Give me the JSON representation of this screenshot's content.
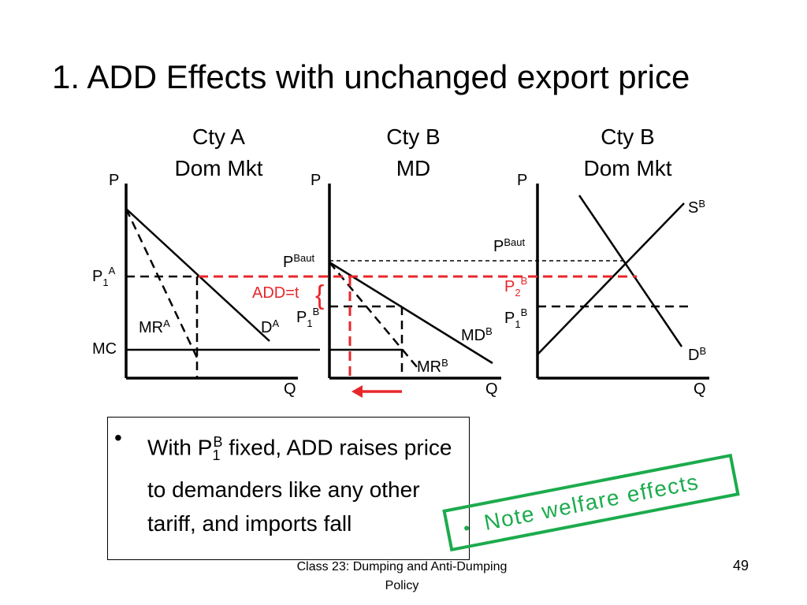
{
  "slide": {
    "title": "1.  ADD Effects with unchanged export price",
    "footer": "Class 23:  Dumping and Anti-Dumping Policy",
    "page_number": "49"
  },
  "panels": [
    {
      "title_line1": "Cty A",
      "title_line2": "Dom Mkt"
    },
    {
      "title_line1": "Cty B",
      "title_line2": "MD"
    },
    {
      "title_line1": "Cty B",
      "title_line2": "Dom Mkt"
    }
  ],
  "diagram": {
    "axis_p": "P",
    "axis_q": "Q",
    "panel_a": {
      "p1": "P",
      "p1_sub": "1",
      "p1_sup": "A",
      "mc": "MC",
      "mr": "MR",
      "mr_sup": "A",
      "d": "D",
      "d_sup": "A"
    },
    "panel_b": {
      "pbaut": "P",
      "pbaut_sup": "Baut",
      "add": "ADD=t",
      "add_brace": "{",
      "p1": "P",
      "p1_sub": "1",
      "p1_sup": "B",
      "md": "MD",
      "md_sup": "B",
      "mr": "MR",
      "mr_sup": "B"
    },
    "panel_c": {
      "pbaut": "P",
      "pbaut_sup": "Baut",
      "p2": "P",
      "p2_sub": "2",
      "p2_sup": "B",
      "p1": "P",
      "p1_sub": "1",
      "p1_sup": "B",
      "s": "S",
      "s_sup": "B",
      "d": "D",
      "d_sup": "B"
    }
  },
  "bullet": {
    "symbol": "•",
    "text_a": "With P",
    "text_sub": "1",
    "text_sup": "B",
    "text_b": " fixed, ADD raises price to demanders like any other tariff, and imports fall"
  },
  "note": {
    "symbol": "•",
    "text": "Note welfare effects"
  },
  "colors": {
    "red": "#e8262a",
    "green": "#1cab4d",
    "black": "#000000"
  }
}
